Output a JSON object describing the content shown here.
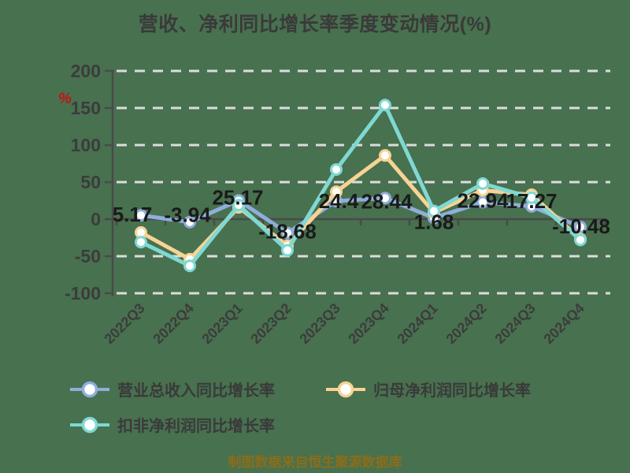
{
  "title": "营收、净利同比增长率季度变动情况(%)",
  "unit_label": "%",
  "footer": "制图数据来自恒生聚源数据库",
  "colors": {
    "background": "#48714F",
    "title_text": "#3A3A3A",
    "axis": "#4A4A4A",
    "axis_label": "#3C3C3C",
    "gridline": "#DCDCDC",
    "data_label": "#1A1A1A",
    "footer_text": "#8B6D1A",
    "unit_icon": "#C41414",
    "marker_fill": "#FFFFFF"
  },
  "chart_data": {
    "type": "line",
    "title": "营收、净利同比增长率季度变动情况(%)",
    "xlabel": "",
    "ylabel": "%",
    "categories": [
      "2022Q3",
      "2022Q4",
      "2023Q1",
      "2023Q2",
      "2023Q3",
      "2023Q4",
      "2024Q1",
      "2024Q2",
      "2024Q3",
      "2024Q4"
    ],
    "y_axis": {
      "min": -100,
      "max": 200,
      "ticks": [
        200,
        150,
        100,
        50,
        0,
        -50,
        -100
      ],
      "unit": "%"
    },
    "grid": "dashed",
    "legend_position": "bottom-left",
    "series": [
      {
        "id": "revenue-yoy",
        "name": "营业总收入同比增长率",
        "color": "#8FAEDC",
        "values": [
          5.17,
          -3.94,
          25.17,
          -18.68,
          24.4,
          28.44,
          1.68,
          22.94,
          17.27,
          -10.48
        ],
        "labels": [
          "5.17",
          "-3.94",
          "25.17",
          "-18.68",
          "24.4",
          "28.44",
          "1.68",
          "22.94",
          "17.27",
          "-10.48"
        ]
      },
      {
        "id": "net-profit-yoy",
        "name": "归母净利润同比增长率",
        "color": "#F8D394",
        "values": [
          -18,
          -54,
          16,
          -36,
          37,
          86,
          9,
          39,
          33,
          -27
        ],
        "labels": []
      },
      {
        "id": "non-gaap-profit-yoy",
        "name": "扣非净利润同比增长率",
        "color": "#7FD8D3",
        "values": [
          -31,
          -63,
          19,
          -42,
          67,
          154,
          11,
          48,
          29,
          -28
        ],
        "labels": []
      }
    ]
  }
}
